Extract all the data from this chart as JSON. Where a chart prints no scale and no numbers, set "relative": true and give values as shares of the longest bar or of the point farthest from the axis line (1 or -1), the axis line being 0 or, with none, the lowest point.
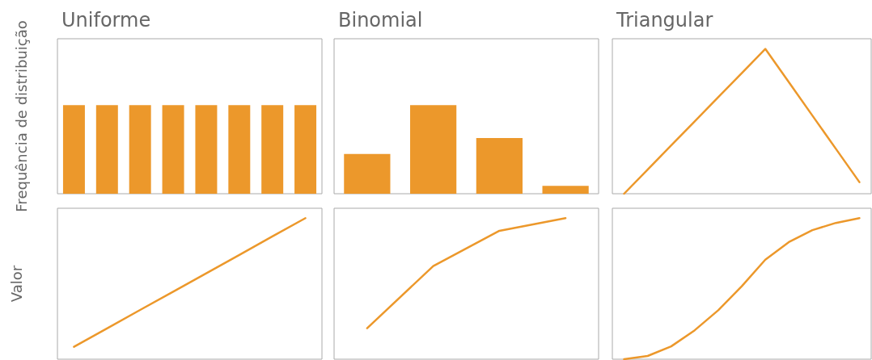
{
  "chart_data": [
    {
      "type": "bar",
      "title": "Uniforme",
      "ylabel": "Frequência de distribuição",
      "relative": true,
      "color": "#ec982b",
      "categories": [
        null,
        null,
        null,
        null,
        null,
        null,
        null,
        null
      ],
      "values": [
        1,
        1,
        1,
        1,
        1,
        1,
        1,
        1
      ]
    },
    {
      "type": "bar",
      "title": "Binomial",
      "relative": true,
      "color": "#ec982b",
      "categories": [
        null,
        null,
        null,
        null
      ],
      "values": [
        0.45,
        1,
        0.63,
        0.09
      ]
    },
    {
      "type": "line",
      "title": "Triangular",
      "relative": true,
      "color": "#ec982b",
      "categories": [
        null,
        null,
        null,
        null,
        null,
        null,
        null,
        null,
        null,
        null,
        null
      ],
      "values": [
        0,
        0.167,
        0.333,
        0.5,
        0.667,
        0.833,
        1,
        0.77,
        0.54,
        0.31,
        0.08
      ]
    },
    {
      "type": "line",
      "ylabel": "Valor",
      "relative": true,
      "color": "#ec982b",
      "categories": [
        null,
        null,
        null,
        null,
        null,
        null,
        null,
        null
      ],
      "values": [
        0.088,
        0.218,
        0.349,
        0.479,
        0.609,
        0.739,
        0.87,
        1
      ]
    },
    {
      "type": "line",
      "relative": true,
      "color": "#ec982b",
      "categories": [
        null,
        null,
        null,
        null
      ],
      "values": [
        0.22,
        0.66,
        0.91,
        1
      ]
    },
    {
      "type": "line",
      "relative": true,
      "color": "#ec982b",
      "categories": [
        null,
        null,
        null,
        null,
        null,
        null,
        null,
        null,
        null,
        null,
        null
      ],
      "values": [
        0,
        0.023,
        0.091,
        0.205,
        0.347,
        0.517,
        0.705,
        0.83,
        0.915,
        0.966,
        1
      ]
    }
  ]
}
